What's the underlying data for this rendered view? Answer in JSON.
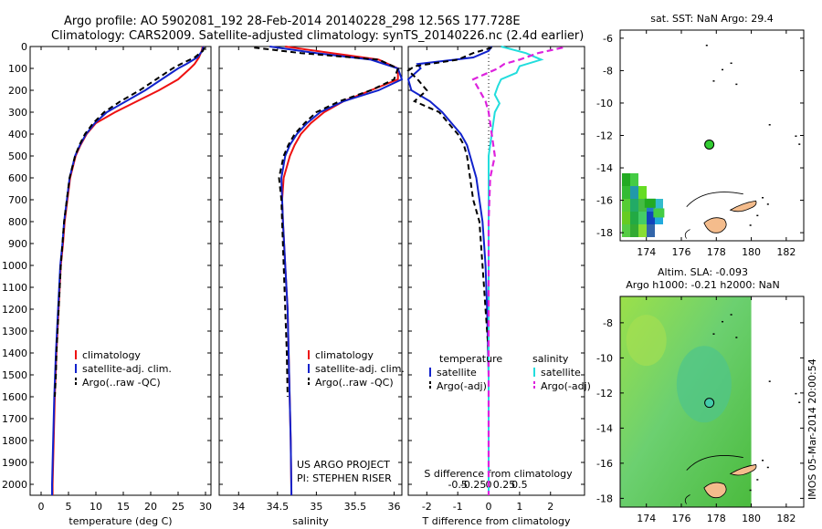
{
  "title": {
    "line1": "Argo profile: AO 5902081_192 28-Feb-2014 20140228_298 12.56S 177.728E",
    "line2": "Climatology: CARS2009. Satellite-adjusted climatology: synTS_20140226.nc (2.4d earlier)"
  },
  "sidebar_stamp": "IMOS 05-Mar-2014 20:00:54",
  "depth_ticks": [
    "0",
    "100",
    "200",
    "300",
    "400",
    "500",
    "600",
    "700",
    "800",
    "900",
    "1000",
    "1100",
    "1200",
    "1300",
    "1400",
    "1500",
    "1600",
    "1700",
    "1800",
    "1900",
    "2000"
  ],
  "colors": {
    "climatology": "#ee1111",
    "satellite": "#1122cc",
    "argo": "#000000",
    "sal_sat": "#22dddd",
    "sal_argo": "#dd22dd"
  },
  "chart_data": [
    {
      "type": "line",
      "xlabel": "temperature (deg C)",
      "xlim": [
        -2,
        31
      ],
      "ylim": [
        2050,
        0
      ],
      "xticks": [
        0,
        5,
        10,
        15,
        20,
        25,
        30
      ],
      "legend": [
        "climatology",
        "satellite-adj. clim.",
        "Argo(..raw -QC)"
      ],
      "series": [
        {
          "name": "climatology",
          "style": "red",
          "depth": [
            0,
            20,
            50,
            80,
            100,
            150,
            200,
            250,
            300,
            350,
            400,
            450,
            500,
            600,
            700,
            800,
            900,
            1000,
            1200,
            1400,
            1600,
            1800,
            2000,
            2050
          ],
          "values": [
            29.5,
            29.3,
            28.8,
            28.0,
            27.2,
            25.0,
            21.5,
            17.5,
            13.5,
            10.0,
            8.3,
            7.2,
            6.3,
            5.3,
            4.8,
            4.3,
            4.0,
            3.6,
            3.2,
            2.8,
            2.5,
            2.3,
            2.1,
            2.1
          ]
        },
        {
          "name": "satellite-adj. clim.",
          "style": "blue",
          "depth": [
            0,
            20,
            50,
            80,
            100,
            150,
            200,
            250,
            300,
            350,
            400,
            450,
            500,
            600,
            700,
            800,
            900,
            1000,
            1200,
            1400,
            1600,
            1800,
            2000,
            2050
          ],
          "values": [
            29.6,
            29.4,
            28.5,
            26.5,
            25.0,
            22.0,
            19.0,
            15.5,
            12.0,
            9.8,
            8.2,
            7.1,
            6.2,
            5.2,
            4.7,
            4.2,
            3.9,
            3.5,
            3.1,
            2.7,
            2.4,
            2.2,
            2.0,
            2.0
          ]
        },
        {
          "name": "Argo(..raw -QC)",
          "style": "black",
          "depth": [
            5,
            20,
            50,
            80,
            100,
            150,
            200,
            250,
            300,
            350,
            400,
            450,
            500,
            600,
            700,
            800,
            900,
            1000,
            1100,
            1200,
            1300,
            1400,
            1500,
            1600
          ],
          "values": [
            29.8,
            29.5,
            28.0,
            25.5,
            24.0,
            21.0,
            18.0,
            14.5,
            11.5,
            9.5,
            8.0,
            7.0,
            6.2,
            5.2,
            4.7,
            4.2,
            3.9,
            3.6,
            3.4,
            3.2,
            3.0,
            2.8,
            2.7,
            2.5
          ]
        }
      ]
    },
    {
      "type": "line",
      "xlabel": "salinity",
      "xlim": [
        33.75,
        36.1
      ],
      "ylim": [
        2050,
        0
      ],
      "xticks": [
        34,
        34.5,
        35,
        35.5,
        36
      ],
      "xticklabels": [
        "34",
        "34.5",
        "35",
        "35.5",
        "36"
      ],
      "legend": [
        "climatology",
        "satellite-adj. clim.",
        "Argo(..raw -QC)"
      ],
      "annotation": [
        "US ARGO PROJECT",
        "PI: STEPHEN RISER"
      ],
      "series": [
        {
          "name": "climatology",
          "style": "red",
          "depth": [
            0,
            30,
            60,
            100,
            150,
            200,
            250,
            300,
            350,
            400,
            450,
            500,
            600,
            700,
            800,
            1000,
            1200,
            1500,
            1800,
            2050
          ],
          "values": [
            34.6,
            35.2,
            35.8,
            36.05,
            36.05,
            35.7,
            35.35,
            35.1,
            34.93,
            34.8,
            34.72,
            34.66,
            34.58,
            34.56,
            34.57,
            34.6,
            34.63,
            34.65,
            34.67,
            34.68
          ]
        },
        {
          "name": "satellite-adj. clim.",
          "style": "blue",
          "depth": [
            0,
            30,
            60,
            100,
            150,
            200,
            250,
            300,
            350,
            400,
            450,
            500,
            600,
            700,
            800,
            1000,
            1200,
            1500,
            1800,
            2050
          ],
          "values": [
            34.4,
            35.0,
            35.7,
            36.05,
            36.1,
            35.8,
            35.35,
            35.05,
            34.88,
            34.75,
            34.66,
            34.6,
            34.55,
            34.56,
            34.57,
            34.6,
            34.63,
            34.65,
            34.67,
            34.68
          ]
        },
        {
          "name": "Argo(..raw -QC)",
          "style": "black",
          "depth": [
            5,
            30,
            60,
            100,
            150,
            200,
            250,
            300,
            350,
            400,
            450,
            500,
            600,
            700,
            800,
            1000,
            1200,
            1400,
            1600
          ],
          "values": [
            34.2,
            34.8,
            35.8,
            36.05,
            36.0,
            35.7,
            35.3,
            35.0,
            34.85,
            34.72,
            34.64,
            34.58,
            34.52,
            34.55,
            34.56,
            34.58,
            34.6,
            34.62,
            34.63
          ]
        }
      ]
    },
    {
      "type": "line",
      "xlabel": "T difference from climatology",
      "xlabel_top": "S difference from climatology",
      "xlim": [
        -2.6,
        3.1
      ],
      "ylim": [
        2050,
        0
      ],
      "xticks": [
        -2,
        -1,
        0,
        1,
        2
      ],
      "xticklabels_top": [
        "-0.5",
        "-0.25",
        "0",
        "0.25",
        "0.5"
      ],
      "legend_left_title": "temperature",
      "legend_right_title": "salinity",
      "legend": [
        "satellite",
        "Argo(-adj)",
        "satellite",
        "Argo(-adj)"
      ],
      "series": [
        {
          "name": "satellite",
          "style": "blue",
          "depth": [
            0,
            20,
            50,
            80,
            100,
            150,
            200,
            250,
            300,
            350,
            400,
            450,
            500,
            600,
            700,
            800,
            900,
            1000,
            1200,
            1500,
            1800,
            2000,
            2050
          ],
          "values": [
            0.1,
            0.0,
            -0.5,
            -2.3,
            -2.2,
            -2.6,
            -2.5,
            -1.9,
            -1.5,
            -1.2,
            -0.9,
            -0.7,
            -0.6,
            -0.4,
            -0.3,
            -0.2,
            -0.15,
            -0.1,
            -0.05,
            0.0,
            0.0,
            0.0,
            0.0
          ]
        },
        {
          "name": "Argo(-adj)",
          "style": "black-dash",
          "depth": [
            5,
            30,
            60,
            90,
            110,
            150,
            200,
            250,
            300,
            350,
            400,
            450,
            500,
            600,
            700,
            800,
            900,
            1000,
            1100,
            1200,
            1300,
            1400,
            1500,
            1600
          ],
          "values": [
            0.1,
            -0.5,
            -1.0,
            -2.4,
            -2.6,
            -2.3,
            -2.0,
            -2.4,
            -1.6,
            -1.3,
            -1.0,
            -0.8,
            -0.7,
            -0.6,
            -0.5,
            -0.3,
            -0.25,
            -0.2,
            -0.15,
            -0.1,
            -0.05,
            0.0,
            0.0,
            0.0
          ]
        },
        {
          "name": "satellite",
          "style": "cyan",
          "depth": [
            0,
            30,
            60,
            90,
            120,
            150,
            180,
            220,
            260,
            300,
            350,
            400,
            450,
            500,
            600,
            800,
            1000,
            1500,
            2000,
            2050
          ],
          "values": [
            0.4,
            1.2,
            1.7,
            1.0,
            0.9,
            0.4,
            0.3,
            0.2,
            0.35,
            0.2,
            0.15,
            0.1,
            0.05,
            0.0,
            0.0,
            0.0,
            0.0,
            0.0,
            0.0,
            0.0
          ]
        },
        {
          "name": "Argo(-adj)",
          "style": "magenta-dash",
          "depth": [
            5,
            30,
            60,
            80,
            100,
            150,
            200,
            250,
            300,
            400,
            500,
            600,
            800,
            1000,
            1200,
            1500,
            1800,
            2000,
            2050
          ],
          "values": [
            2.4,
            1.6,
            1.0,
            0.5,
            0.3,
            -0.5,
            -0.3,
            -0.1,
            0.0,
            0.1,
            0.2,
            0.05,
            0.0,
            0.0,
            0.0,
            0.0,
            0.0,
            0.0,
            0.0
          ]
        }
      ]
    },
    {
      "type": "map",
      "title": "sat. SST: NaN Argo: 29.4",
      "xlim": [
        172.5,
        183
      ],
      "ylim": [
        -18.5,
        -5.5
      ],
      "xticks": [
        174,
        176,
        178,
        180,
        182
      ],
      "yticks": [
        -6,
        -8,
        -10,
        -12,
        -14,
        -16,
        -18
      ],
      "argo_position": [
        177.6,
        -12.56
      ]
    },
    {
      "type": "map",
      "title_line1": "Altim. SLA: -0.093",
      "title_line2": "Argo h1000: -0.21 h2000: NaN",
      "xlim": [
        172.5,
        183
      ],
      "ylim": [
        -18.5,
        -6.5
      ],
      "xticks": [
        174,
        176,
        178,
        180,
        182
      ],
      "yticks": [
        -8,
        -10,
        -12,
        -14,
        -16,
        -18
      ],
      "argo_position": [
        177.6,
        -12.56
      ]
    }
  ]
}
